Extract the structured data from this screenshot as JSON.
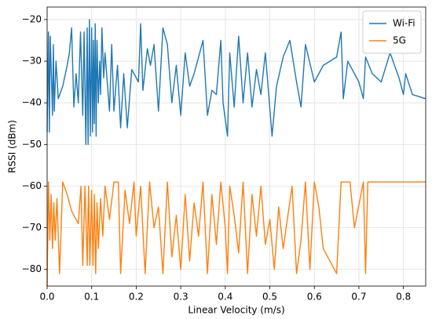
{
  "chart_data": {
    "type": "line",
    "xlabel": "Linear Velocity (m/s)",
    "ylabel": "RSSI (dBm)",
    "xlim": [
      0,
      0.85
    ],
    "ylim": [
      -84,
      -17
    ],
    "xticks": [
      {
        "value": 0,
        "label": "0.0"
      },
      0.1,
      0.2,
      0.3,
      0.4,
      0.5,
      0.6,
      0.7,
      0.8
    ],
    "yticks": [
      {
        "value": -80,
        "label": "−80"
      },
      {
        "value": -70,
        "label": "−70"
      },
      {
        "value": -60,
        "label": "−60"
      },
      {
        "value": -50,
        "label": "−50"
      },
      {
        "value": -40,
        "label": "−40"
      },
      {
        "value": -30,
        "label": "−30"
      },
      {
        "value": -20,
        "label": "−20"
      }
    ],
    "grid": true,
    "legend": "upper right",
    "series": [
      {
        "name": "Wi-Fi",
        "color": "#1f77b4",
        "x": [
          0.0,
          0.003,
          0.005,
          0.007,
          0.01,
          0.012,
          0.014,
          0.016,
          0.02,
          0.025,
          0.035,
          0.045,
          0.05,
          0.055,
          0.06,
          0.065,
          0.07,
          0.075,
          0.08,
          0.083,
          0.087,
          0.09,
          0.092,
          0.095,
          0.097,
          0.1,
          0.102,
          0.104,
          0.106,
          0.108,
          0.11,
          0.112,
          0.115,
          0.118,
          0.12,
          0.123,
          0.127,
          0.13,
          0.14,
          0.145,
          0.15,
          0.158,
          0.165,
          0.172,
          0.18,
          0.19,
          0.205,
          0.21,
          0.215,
          0.225,
          0.232,
          0.24,
          0.25,
          0.26,
          0.27,
          0.28,
          0.29,
          0.3,
          0.31,
          0.32,
          0.33,
          0.34,
          0.35,
          0.36,
          0.37,
          0.38,
          0.39,
          0.395,
          0.405,
          0.41,
          0.42,
          0.43,
          0.44,
          0.45,
          0.46,
          0.47,
          0.48,
          0.49,
          0.505,
          0.515,
          0.53,
          0.545,
          0.56,
          0.57,
          0.58,
          0.6,
          0.62,
          0.65,
          0.66,
          0.665,
          0.675,
          0.7,
          0.71,
          0.715,
          0.73,
          0.75,
          0.77,
          0.79,
          0.8,
          0.805,
          0.82,
          0.85
        ],
        "values": [
          -47,
          -23,
          -47,
          -24,
          -35,
          -43,
          -26,
          -42,
          -30,
          -39,
          -36,
          -31,
          -28,
          -22,
          -41,
          -33,
          -40,
          -23,
          -43,
          -23,
          -50,
          -22,
          -50,
          -20,
          -48,
          -22,
          -47,
          -25,
          -45,
          -21,
          -48,
          -25,
          -40,
          -30,
          -38,
          -22,
          -34,
          -28,
          -42,
          -26,
          -42,
          -31,
          -46,
          -33,
          -46,
          -32,
          -35,
          -21,
          -37,
          -27,
          -31,
          -26,
          -42,
          -22,
          -26,
          -40,
          -31,
          -43,
          -28,
          -36,
          -33,
          -29,
          -25,
          -43,
          -37,
          -38,
          -25,
          -40,
          -48,
          -28,
          -41,
          -24,
          -40,
          -28,
          -41,
          -32,
          -38,
          -28,
          -48,
          -36,
          -29,
          -25,
          -35,
          -41,
          -26,
          -35,
          -31,
          -29,
          -23,
          -39,
          -30,
          -35,
          -39,
          -29,
          -33,
          -35,
          -28,
          -34,
          -38,
          -33,
          -38,
          -39
        ]
      },
      {
        "name": "5G",
        "color": "#ff7f0e",
        "x": [
          0.0,
          0.003,
          0.006,
          0.009,
          0.012,
          0.015,
          0.018,
          0.022,
          0.028,
          0.035,
          0.045,
          0.055,
          0.06,
          0.07,
          0.076,
          0.08,
          0.085,
          0.09,
          0.093,
          0.096,
          0.1,
          0.103,
          0.106,
          0.109,
          0.112,
          0.115,
          0.12,
          0.125,
          0.13,
          0.14,
          0.15,
          0.16,
          0.165,
          0.175,
          0.185,
          0.195,
          0.2,
          0.21,
          0.22,
          0.23,
          0.24,
          0.25,
          0.26,
          0.27,
          0.28,
          0.29,
          0.3,
          0.31,
          0.32,
          0.33,
          0.34,
          0.35,
          0.36,
          0.37,
          0.38,
          0.39,
          0.4,
          0.405,
          0.41,
          0.42,
          0.43,
          0.44,
          0.45,
          0.46,
          0.47,
          0.48,
          0.49,
          0.5,
          0.51,
          0.52,
          0.53,
          0.55,
          0.56,
          0.57,
          0.58,
          0.59,
          0.6,
          0.61,
          0.62,
          0.64,
          0.65,
          0.66,
          0.68,
          0.69,
          0.71,
          0.715,
          0.72,
          0.85
        ],
        "values": [
          -84,
          -59,
          -73,
          -62,
          -75,
          -64,
          -73,
          -63,
          -81,
          -59,
          -62,
          -66,
          -67,
          -69,
          -60,
          -79,
          -60,
          -79,
          -60,
          -79,
          -61,
          -79,
          -62,
          -81,
          -64,
          -75,
          -63,
          -72,
          -60,
          -68,
          -59,
          -59,
          -81,
          -61,
          -69,
          -59,
          -72,
          -60,
          -81,
          -59,
          -70,
          -65,
          -81,
          -59,
          -77,
          -67,
          -80,
          -62,
          -78,
          -64,
          -72,
          -59,
          -81,
          -62,
          -74,
          -59,
          -70,
          -81,
          -60,
          -67,
          -76,
          -59,
          -81,
          -62,
          -72,
          -60,
          -74,
          -68,
          -80,
          -65,
          -75,
          -60,
          -81,
          -73,
          -59,
          -80,
          -59,
          -65,
          -75,
          -79,
          -81,
          -59,
          -59,
          -70,
          -59,
          -81,
          -59,
          -59
        ]
      }
    ]
  }
}
